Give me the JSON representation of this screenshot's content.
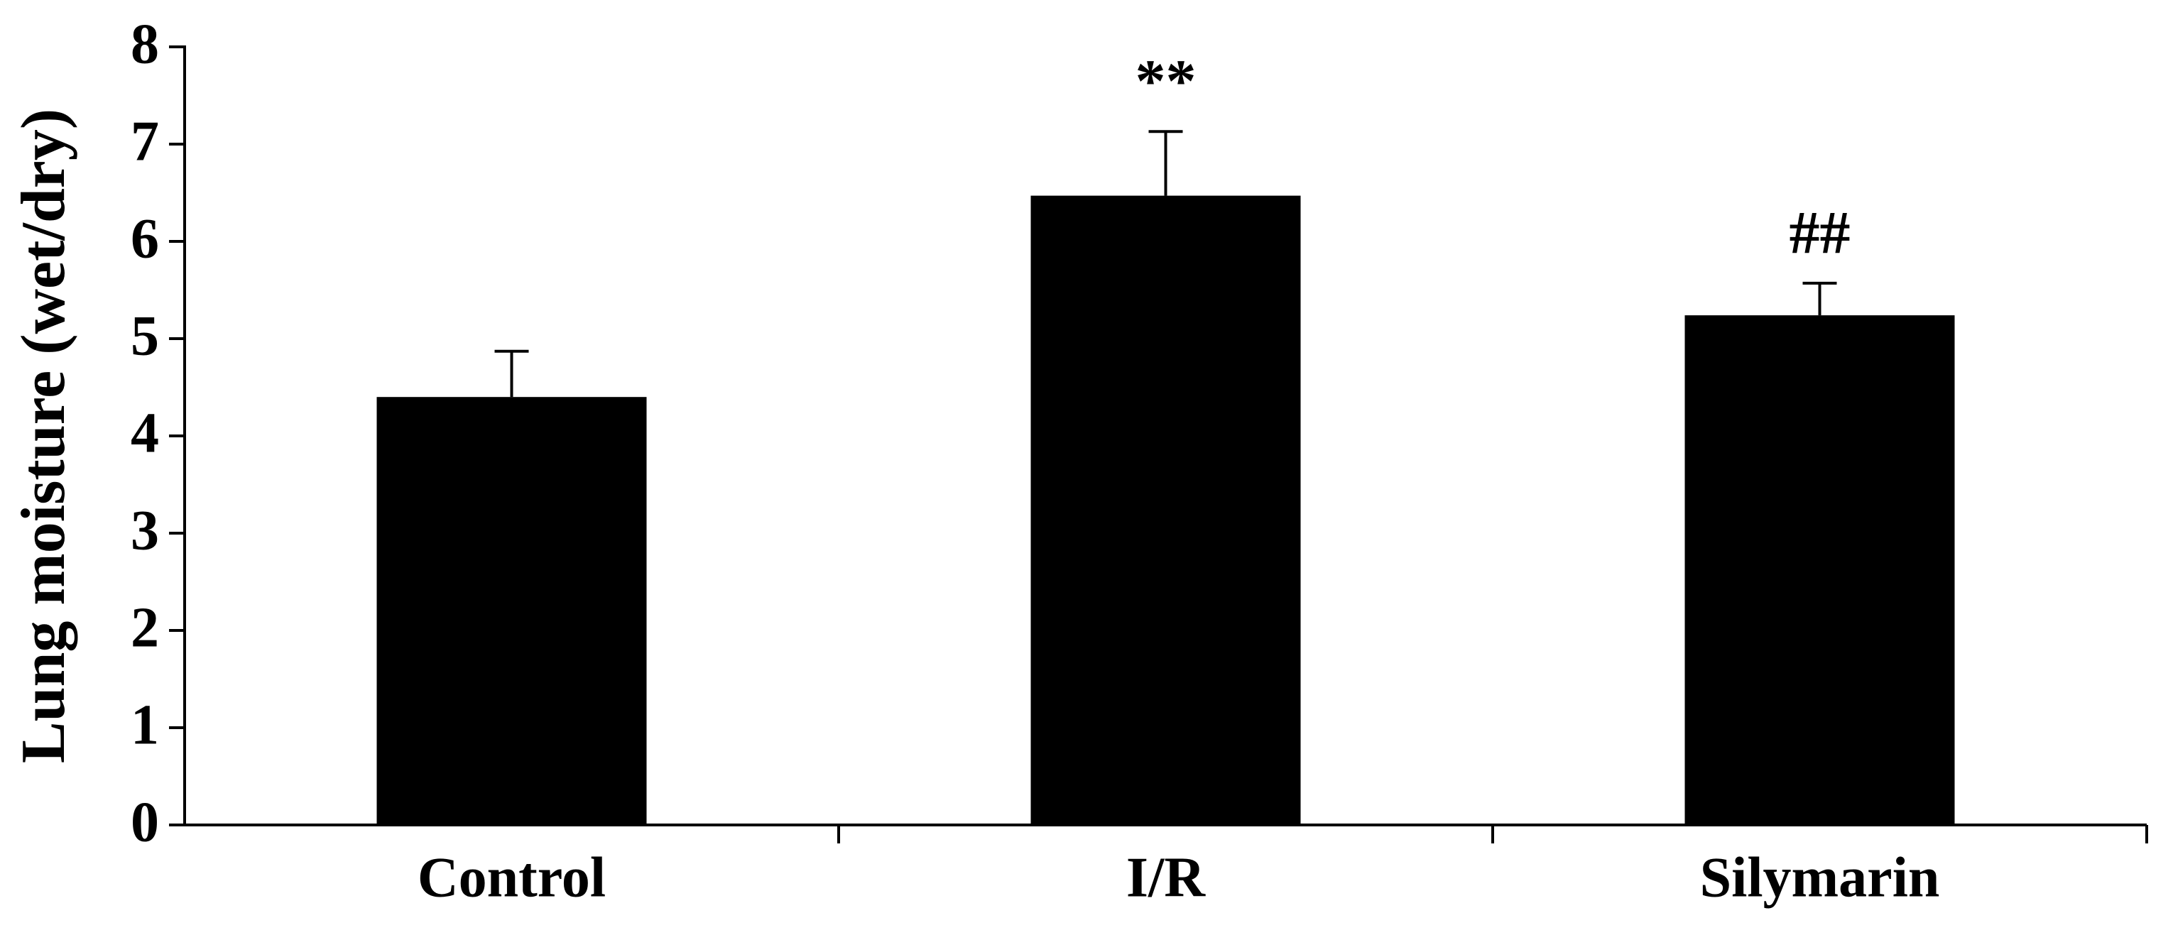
{
  "chart_data": {
    "type": "bar",
    "y_label": "Lung moisture (wet/dry)",
    "categories": [
      "Control",
      "I/R",
      "Silymarin"
    ],
    "values": [
      4.4,
      6.47,
      5.24
    ],
    "errors": [
      0.47,
      0.66,
      0.33
    ],
    "annotations": [
      null,
      "**",
      "##"
    ],
    "color": "#000000",
    "ylim": [
      0,
      8
    ],
    "yticks": [
      0,
      1,
      2,
      3,
      4,
      5,
      6,
      7,
      8
    ],
    "grid": false
  }
}
